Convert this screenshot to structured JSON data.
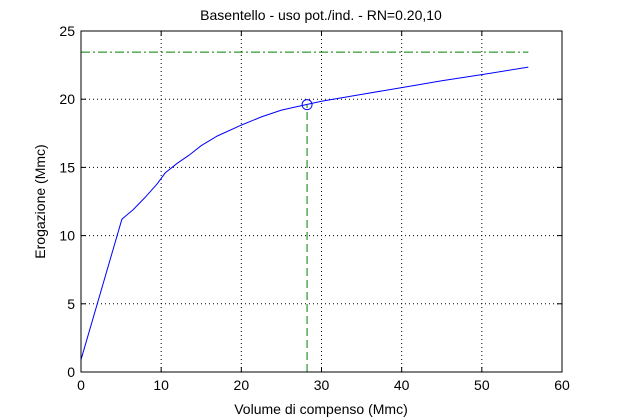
{
  "chart_data": {
    "type": "line",
    "title": "Basentello  -  uso pot./ind.  -   RN=0.20,10",
    "xlabel": "Volume di compenso (Mmc)",
    "ylabel": "Erogazione (Mmc)",
    "xlim": [
      0,
      60
    ],
    "ylim": [
      0,
      25
    ],
    "xticks": [
      0,
      10,
      20,
      30,
      40,
      50,
      60
    ],
    "yticks": [
      0,
      5,
      10,
      15,
      20,
      25
    ],
    "grid": true,
    "series": [
      {
        "color": "#0000ff",
        "x": [
          0,
          5.1,
          6.5,
          8,
          9.5,
          10.5,
          12,
          13.5,
          15,
          17,
          20,
          22.5,
          25,
          28,
          30,
          35,
          40,
          45,
          50,
          55.8
        ],
        "y": [
          0.9,
          11.2,
          11.9,
          12.8,
          13.8,
          14.6,
          15.3,
          15.9,
          16.6,
          17.3,
          18.1,
          18.7,
          19.2,
          19.6,
          19.85,
          20.35,
          20.85,
          21.35,
          21.8,
          22.35
        ]
      }
    ],
    "marker_point": {
      "x": 28.2,
      "y": 19.6,
      "color": "#0000ff",
      "shape": "circle"
    },
    "reference_lines": {
      "horizontal_y": 23.45,
      "vertical_x": 28.2,
      "x_max": 55.8,
      "color": "#008000",
      "style": "dash-dot horizontal, dashed vertical"
    }
  }
}
